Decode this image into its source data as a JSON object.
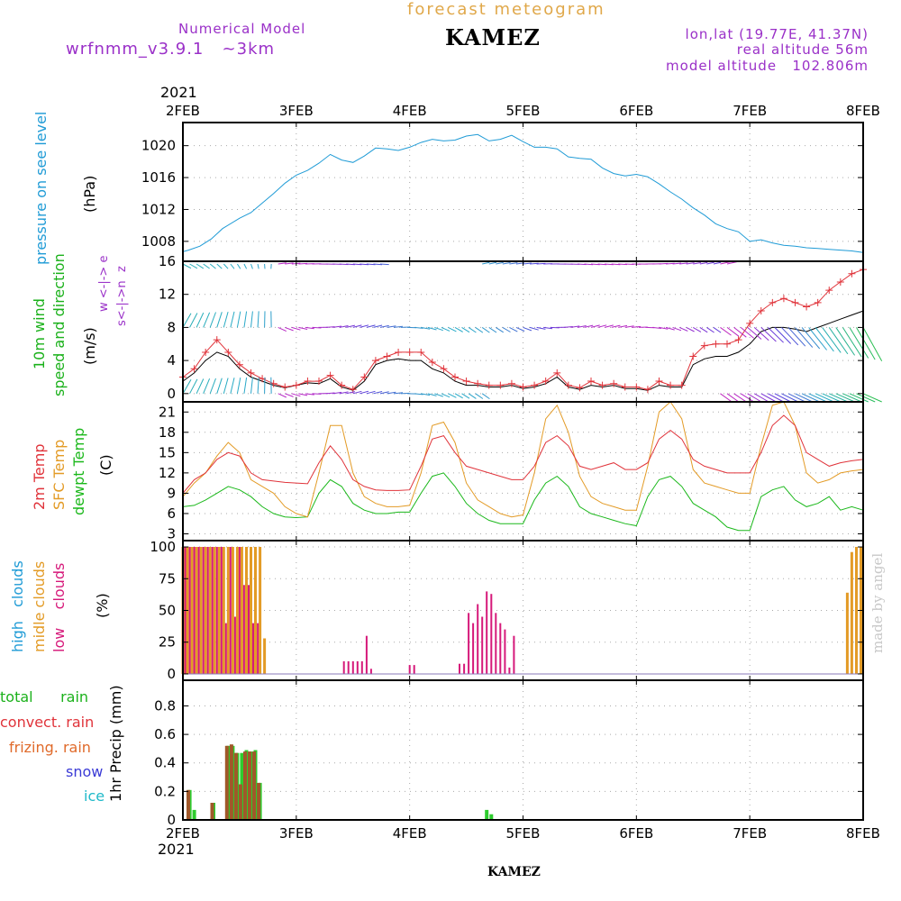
{
  "header": {
    "subtitle": "forecast meteogram",
    "model_label": "Numerical Model",
    "model_version": "wrfnmm_v3.9.1   ~3km",
    "station": "KAMEZ",
    "lonlat": "lon,lat (19.77E, 41.37N)",
    "real_altitude": "real altitude 56m",
    "model_altitude": "model altitude   102.806m",
    "year": "2021",
    "footer_station": "KAMEZ",
    "watermark": "made by angel"
  },
  "colors": {
    "pressure": "#1f9bd6",
    "wind_label": "#1bb11b",
    "temp2m": "#e0333a",
    "sfctemp": "#e39b26",
    "dewpt": "#1bb81b",
    "high_clouds": "#1f9bd6",
    "mid_clouds": "#e39b26",
    "low_clouds": "#d6197a",
    "header_purple": "#9a30c8",
    "subtitle": "#e0a84a"
  },
  "x_axis": {
    "labels": [
      "2FEB",
      "3FEB",
      "4FEB",
      "5FEB",
      "6FEB",
      "7FEB",
      "8FEB"
    ],
    "year_top": "2021",
    "year_bottom": "2021"
  },
  "panels": {
    "pressure": {
      "label": "pressure on see level",
      "unit": "(hPa)"
    },
    "wind": {
      "label_line1": "10m wind",
      "label_line2": "speed and direction",
      "unit": "(m/s)",
      "compass_top": "w  <-|->  e",
      "compass_bottom": "s<-|->n",
      "compass_z": "z"
    },
    "temp": {
      "label_2m": "2m Temp",
      "label_sfc": "SFC Temp",
      "label_dew": "dewpt Temp",
      "unit": "(C)"
    },
    "clouds": {
      "label_high": "high   clouds",
      "label_mid": "midle clouds",
      "label_low": "low    clouds",
      "unit": "(%)"
    },
    "precip": {
      "label_total": "total      rain",
      "label_convect": "convect. rain",
      "label_frizing": "frizing. rain",
      "label_snow": "snow",
      "label_ice": "ice",
      "axis_label": "1hr Precip (mm)"
    }
  },
  "chart_data": [
    {
      "type": "line",
      "panel": "pressure",
      "ylabel": "(hPa)",
      "yticks": [
        1008,
        1012,
        1016,
        1020
      ],
      "ylim": [
        1005.5,
        1022.9
      ],
      "x": [
        0,
        0.05,
        0.15,
        0.25,
        0.35,
        0.5,
        0.6,
        0.7,
        0.8,
        0.9,
        1.0,
        1.1,
        1.2,
        1.3,
        1.4,
        1.5,
        1.6,
        1.7,
        1.8,
        1.9,
        2.0,
        2.1,
        2.2,
        2.3,
        2.4,
        2.5,
        2.6,
        2.7,
        2.8,
        2.9,
        3.0,
        3.1,
        3.2,
        3.3,
        3.4,
        3.5,
        3.6,
        3.7,
        3.8,
        3.9,
        4.0,
        4.1,
        4.2,
        4.3,
        4.4,
        4.5,
        4.6,
        4.7,
        4.8,
        4.9,
        5.0,
        5.1,
        5.2,
        5.3,
        5.4,
        5.5,
        5.6,
        5.7,
        5.8,
        5.9,
        6.0
      ],
      "series": [
        {
          "values": [
            1006.7,
            1006.9,
            1007.4,
            1008.3,
            1009.6,
            1010.9,
            1011.6,
            1012.8,
            1014.0,
            1015.3,
            1016.3,
            1016.9,
            1017.8,
            1018.9,
            1018.2,
            1017.9,
            1018.7,
            1019.7,
            1019.6,
            1019.4,
            1019.8,
            1020.4,
            1020.8,
            1020.6,
            1020.7,
            1021.2,
            1021.4,
            1020.6,
            1020.8,
            1021.3,
            1020.5,
            1019.8,
            1019.8,
            1019.6,
            1018.6,
            1018.4,
            1018.3,
            1017.2,
            1016.5,
            1016.2,
            1016.4,
            1016.1,
            1015.2,
            1014.2,
            1013.3,
            1012.2,
            1011.3,
            1010.2,
            1009.6,
            1009.2,
            1008.0,
            1008.2,
            1007.8,
            1007.5,
            1007.4,
            1007.2,
            1007.1,
            1007.0,
            1006.9,
            1006.8,
            1006.6
          ]
        }
      ]
    },
    {
      "type": "line",
      "panel": "wind",
      "ylabel": "(m/s)",
      "yticks": [
        0,
        4,
        8,
        12,
        16
      ],
      "ylim": [
        -1.0,
        16.0
      ],
      "x": [
        0,
        0.1,
        0.2,
        0.3,
        0.4,
        0.5,
        0.6,
        0.7,
        0.8,
        0.9,
        1.0,
        1.1,
        1.2,
        1.3,
        1.4,
        1.5,
        1.6,
        1.7,
        1.8,
        1.9,
        2.0,
        2.1,
        2.2,
        2.3,
        2.4,
        2.5,
        2.6,
        2.7,
        2.8,
        2.9,
        3.0,
        3.1,
        3.2,
        3.3,
        3.4,
        3.5,
        3.6,
        3.7,
        3.8,
        3.9,
        4.0,
        4.1,
        4.2,
        4.3,
        4.4,
        4.5,
        4.6,
        4.7,
        4.8,
        4.9,
        5.0,
        5.1,
        5.2,
        5.3,
        5.4,
        5.5,
        5.6,
        5.7,
        5.8,
        5.9,
        6.0
      ],
      "series": [
        {
          "name": "gust",
          "values": [
            2.0,
            3.0,
            5.0,
            6.5,
            5.0,
            3.5,
            2.5,
            1.8,
            1.2,
            0.8,
            1.0,
            1.5,
            1.5,
            2.2,
            1.0,
            0.5,
            2.0,
            4.0,
            4.5,
            5.0,
            5.0,
            5.0,
            3.8,
            3.0,
            2.0,
            1.5,
            1.2,
            1.0,
            1.0,
            1.2,
            0.8,
            1.0,
            1.5,
            2.5,
            1.0,
            0.7,
            1.5,
            1.0,
            1.2,
            0.8,
            0.8,
            0.5,
            1.5,
            1.0,
            1.0,
            4.5,
            5.8,
            6.0,
            6.0,
            6.5,
            8.5,
            10.0,
            11.0,
            11.5,
            11.0,
            10.5,
            11.0,
            12.5,
            13.5,
            14.5,
            15.0
          ]
        },
        {
          "name": "mean",
          "values": [
            1.5,
            2.5,
            4.0,
            5.0,
            4.5,
            3.0,
            2.0,
            1.5,
            1.0,
            0.7,
            1.0,
            1.3,
            1.2,
            1.8,
            0.8,
            0.4,
            1.5,
            3.5,
            4.0,
            4.2,
            4.0,
            4.0,
            3.0,
            2.5,
            1.5,
            1.0,
            1.0,
            0.8,
            0.8,
            1.0,
            0.6,
            0.8,
            1.2,
            2.0,
            0.8,
            0.5,
            1.0,
            0.8,
            1.0,
            0.6,
            0.6,
            0.4,
            1.0,
            0.8,
            0.8,
            3.5,
            4.2,
            4.5,
            4.5,
            5.0,
            6.0,
            7.5,
            8.0,
            8.0,
            7.8,
            7.5,
            8.0,
            8.5,
            9.0,
            9.5,
            10.0
          ]
        }
      ]
    },
    {
      "type": "line",
      "panel": "temperature",
      "ylabel": "(C)",
      "yticks": [
        3,
        6,
        9,
        12,
        15,
        18,
        21
      ],
      "ylim": [
        2.0,
        22.5
      ],
      "x": [
        0,
        0.1,
        0.2,
        0.3,
        0.4,
        0.5,
        0.6,
        0.7,
        0.8,
        0.9,
        1.0,
        1.1,
        1.2,
        1.3,
        1.4,
        1.5,
        1.6,
        1.7,
        1.8,
        1.9,
        2.0,
        2.1,
        2.2,
        2.3,
        2.4,
        2.5,
        2.6,
        2.7,
        2.8,
        2.9,
        3.0,
        3.1,
        3.2,
        3.3,
        3.4,
        3.5,
        3.6,
        3.7,
        3.8,
        3.9,
        4.0,
        4.1,
        4.2,
        4.3,
        4.4,
        4.5,
        4.6,
        4.7,
        4.8,
        4.9,
        5.0,
        5.1,
        5.2,
        5.3,
        5.4,
        5.5,
        5.6,
        5.7,
        5.8,
        5.9,
        6.0
      ],
      "series": [
        {
          "name": "2m Temp",
          "values": [
            9.0,
            11.0,
            12.0,
            14.0,
            15.0,
            14.5,
            12.0,
            11.0,
            10.8,
            10.6,
            10.5,
            10.4,
            13.5,
            16.0,
            14.0,
            11.0,
            10.0,
            9.5,
            9.4,
            9.4,
            9.5,
            13.0,
            17.0,
            17.5,
            15.0,
            13.0,
            12.5,
            12.0,
            11.5,
            11.0,
            11.0,
            13.0,
            16.5,
            17.5,
            16.0,
            13.0,
            12.5,
            13.0,
            13.5,
            12.5,
            12.5,
            13.5,
            17.0,
            18.3,
            17.0,
            14.0,
            13.0,
            12.5,
            12.0,
            12.0,
            12.0,
            15.0,
            19.0,
            20.5,
            19.0,
            15.0,
            14.0,
            13.0,
            13.5,
            13.8,
            14.0
          ]
        },
        {
          "name": "SFC Temp",
          "values": [
            8.5,
            10.5,
            12.0,
            14.5,
            16.5,
            15.0,
            11.0,
            10.0,
            9.0,
            7.0,
            6.0,
            5.5,
            12.0,
            19.0,
            19.0,
            12.0,
            8.5,
            7.5,
            7.0,
            7.0,
            7.2,
            12.0,
            19.0,
            19.5,
            16.5,
            10.5,
            8.0,
            7.0,
            6.0,
            5.5,
            5.8,
            12.0,
            20.0,
            22.0,
            18.0,
            11.5,
            8.5,
            7.5,
            7.0,
            6.5,
            6.5,
            13.0,
            21.0,
            22.5,
            20.0,
            12.5,
            10.5,
            10.0,
            9.5,
            9.0,
            9.0,
            16.0,
            22.0,
            22.5,
            19.0,
            12.0,
            10.5,
            11.0,
            12.0,
            12.3,
            12.5
          ]
        },
        {
          "name": "dewpt Temp",
          "values": [
            7.0,
            7.2,
            8.0,
            9.0,
            10.0,
            9.5,
            8.5,
            7.0,
            6.0,
            5.5,
            5.4,
            5.5,
            9.0,
            11.0,
            10.0,
            7.5,
            6.5,
            6.0,
            6.0,
            6.2,
            6.2,
            9.0,
            11.5,
            12.0,
            10.0,
            7.5,
            6.0,
            5.0,
            4.5,
            4.5,
            4.5,
            8.0,
            10.5,
            11.5,
            10.0,
            7.0,
            6.0,
            5.5,
            5.0,
            4.5,
            4.2,
            8.5,
            11.0,
            11.5,
            10.0,
            7.5,
            6.5,
            5.5,
            4.0,
            3.5,
            3.5,
            8.5,
            9.5,
            10.0,
            8.0,
            7.0,
            7.5,
            8.5,
            6.5,
            7.0,
            6.5
          ]
        }
      ]
    },
    {
      "type": "bar",
      "panel": "clouds",
      "ylabel": "(%)",
      "yticks": [
        0,
        25,
        50,
        75,
        100
      ],
      "ylim": [
        -5.0,
        105.0
      ],
      "x_mid": [
        0.0,
        0.04,
        0.08,
        0.12,
        0.16,
        0.2,
        0.24,
        0.28,
        0.32,
        0.36,
        0.4,
        0.44,
        0.48,
        0.52,
        0.56,
        0.6,
        0.64,
        0.68,
        0.72
      ],
      "mid_values": [
        100,
        100,
        100,
        100,
        100,
        100,
        100,
        100,
        100,
        100,
        100,
        100,
        100,
        100,
        100,
        100,
        100,
        100,
        28
      ],
      "x_low": [
        0.02,
        0.06,
        0.1,
        0.14,
        0.18,
        0.22,
        0.26,
        0.3,
        0.34,
        0.38,
        0.42,
        0.46,
        0.5,
        0.54,
        0.58,
        0.62,
        0.66,
        1.42,
        1.46,
        1.5,
        1.54,
        1.58,
        1.62,
        1.66,
        2.0,
        2.04,
        2.44,
        2.48,
        2.52,
        2.56,
        2.6,
        2.64,
        2.68,
        2.72,
        2.76,
        2.8,
        2.84,
        2.88,
        2.92
      ],
      "low_values": [
        100,
        100,
        100,
        100,
        100,
        100,
        100,
        100,
        100,
        40,
        100,
        45,
        100,
        70,
        70,
        40,
        40,
        10,
        10,
        10,
        10,
        10,
        30,
        4,
        7,
        7,
        8,
        8,
        48,
        40,
        55,
        45,
        65,
        63,
        48,
        40,
        35,
        5,
        30
      ],
      "x_mid_late": [
        5.86,
        5.9,
        5.94,
        5.98
      ],
      "mid_late_values": [
        64,
        96,
        100,
        100
      ]
    },
    {
      "type": "bar",
      "panel": "precip",
      "ylabel": "1hr Precip (mm)",
      "yticks": [
        0,
        0.2,
        0.4,
        0.6,
        0.8
      ],
      "ylim": [
        0.0,
        0.98
      ],
      "x": [
        0.06,
        0.1,
        0.27,
        0.4,
        0.44,
        0.48,
        0.52,
        0.56,
        0.6,
        0.64,
        0.68,
        2.68,
        2.72
      ],
      "total": [
        0.21,
        0.07,
        0.12,
        0.52,
        0.52,
        0.47,
        0.47,
        0.49,
        0.48,
        0.49,
        0.26,
        0.07,
        0.04
      ],
      "convect": [
        0.21,
        0.0,
        0.12,
        0.52,
        0.53,
        0.47,
        0.25,
        0.48,
        0.48,
        0.48,
        0.26,
        0.0,
        0.0
      ]
    }
  ]
}
